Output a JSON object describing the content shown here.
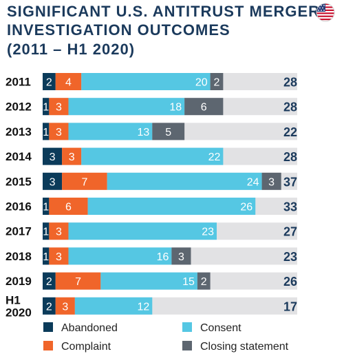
{
  "chart_data": {
    "type": "bar",
    "orientation": "horizontal",
    "stacked": true,
    "title": [
      "SIGNIFICANT U.S. ANTITRUST MERGER",
      "INVESTIGATION OUTCOMES",
      "(2011 – H1 2020)"
    ],
    "categories": [
      [
        "2011"
      ],
      [
        "2012"
      ],
      [
        "2013"
      ],
      [
        "2014"
      ],
      [
        "2015"
      ],
      [
        "2016"
      ],
      [
        "2017"
      ],
      [
        "2018"
      ],
      [
        "2019"
      ],
      [
        "H1",
        "2020"
      ]
    ],
    "series": [
      {
        "name": "Abandoned",
        "color": "#0b3b5a",
        "label_color": "#ffffff",
        "values": [
          2,
          1,
          1,
          3,
          3,
          1,
          1,
          1,
          2,
          2
        ]
      },
      {
        "name": "Complaint",
        "color": "#f0652a",
        "label_color": "#ffffff",
        "values": [
          4,
          3,
          3,
          3,
          7,
          6,
          3,
          3,
          7,
          3
        ]
      },
      {
        "name": "Consent",
        "color": "#55c7e3",
        "label_color": "#ffffff",
        "values": [
          20,
          18,
          13,
          22,
          24,
          26,
          23,
          16,
          15,
          12
        ]
      },
      {
        "name": "Closing statement",
        "color": "#5d6670",
        "label_color": "#ffffff",
        "values": [
          2,
          6,
          5,
          0,
          3,
          0,
          0,
          3,
          2,
          0
        ]
      }
    ],
    "totals": [
      28,
      28,
      22,
      28,
      37,
      33,
      27,
      23,
      26,
      17
    ],
    "track_color": "#e2e2e4",
    "legend_order": [
      0,
      2,
      1,
      3
    ],
    "legend_placement": "bottom",
    "grid": false
  },
  "colors": {
    "title": "#1b3a5c",
    "totals": "#1b3a5c"
  },
  "icons": {
    "flag": "us-flag-icon"
  }
}
